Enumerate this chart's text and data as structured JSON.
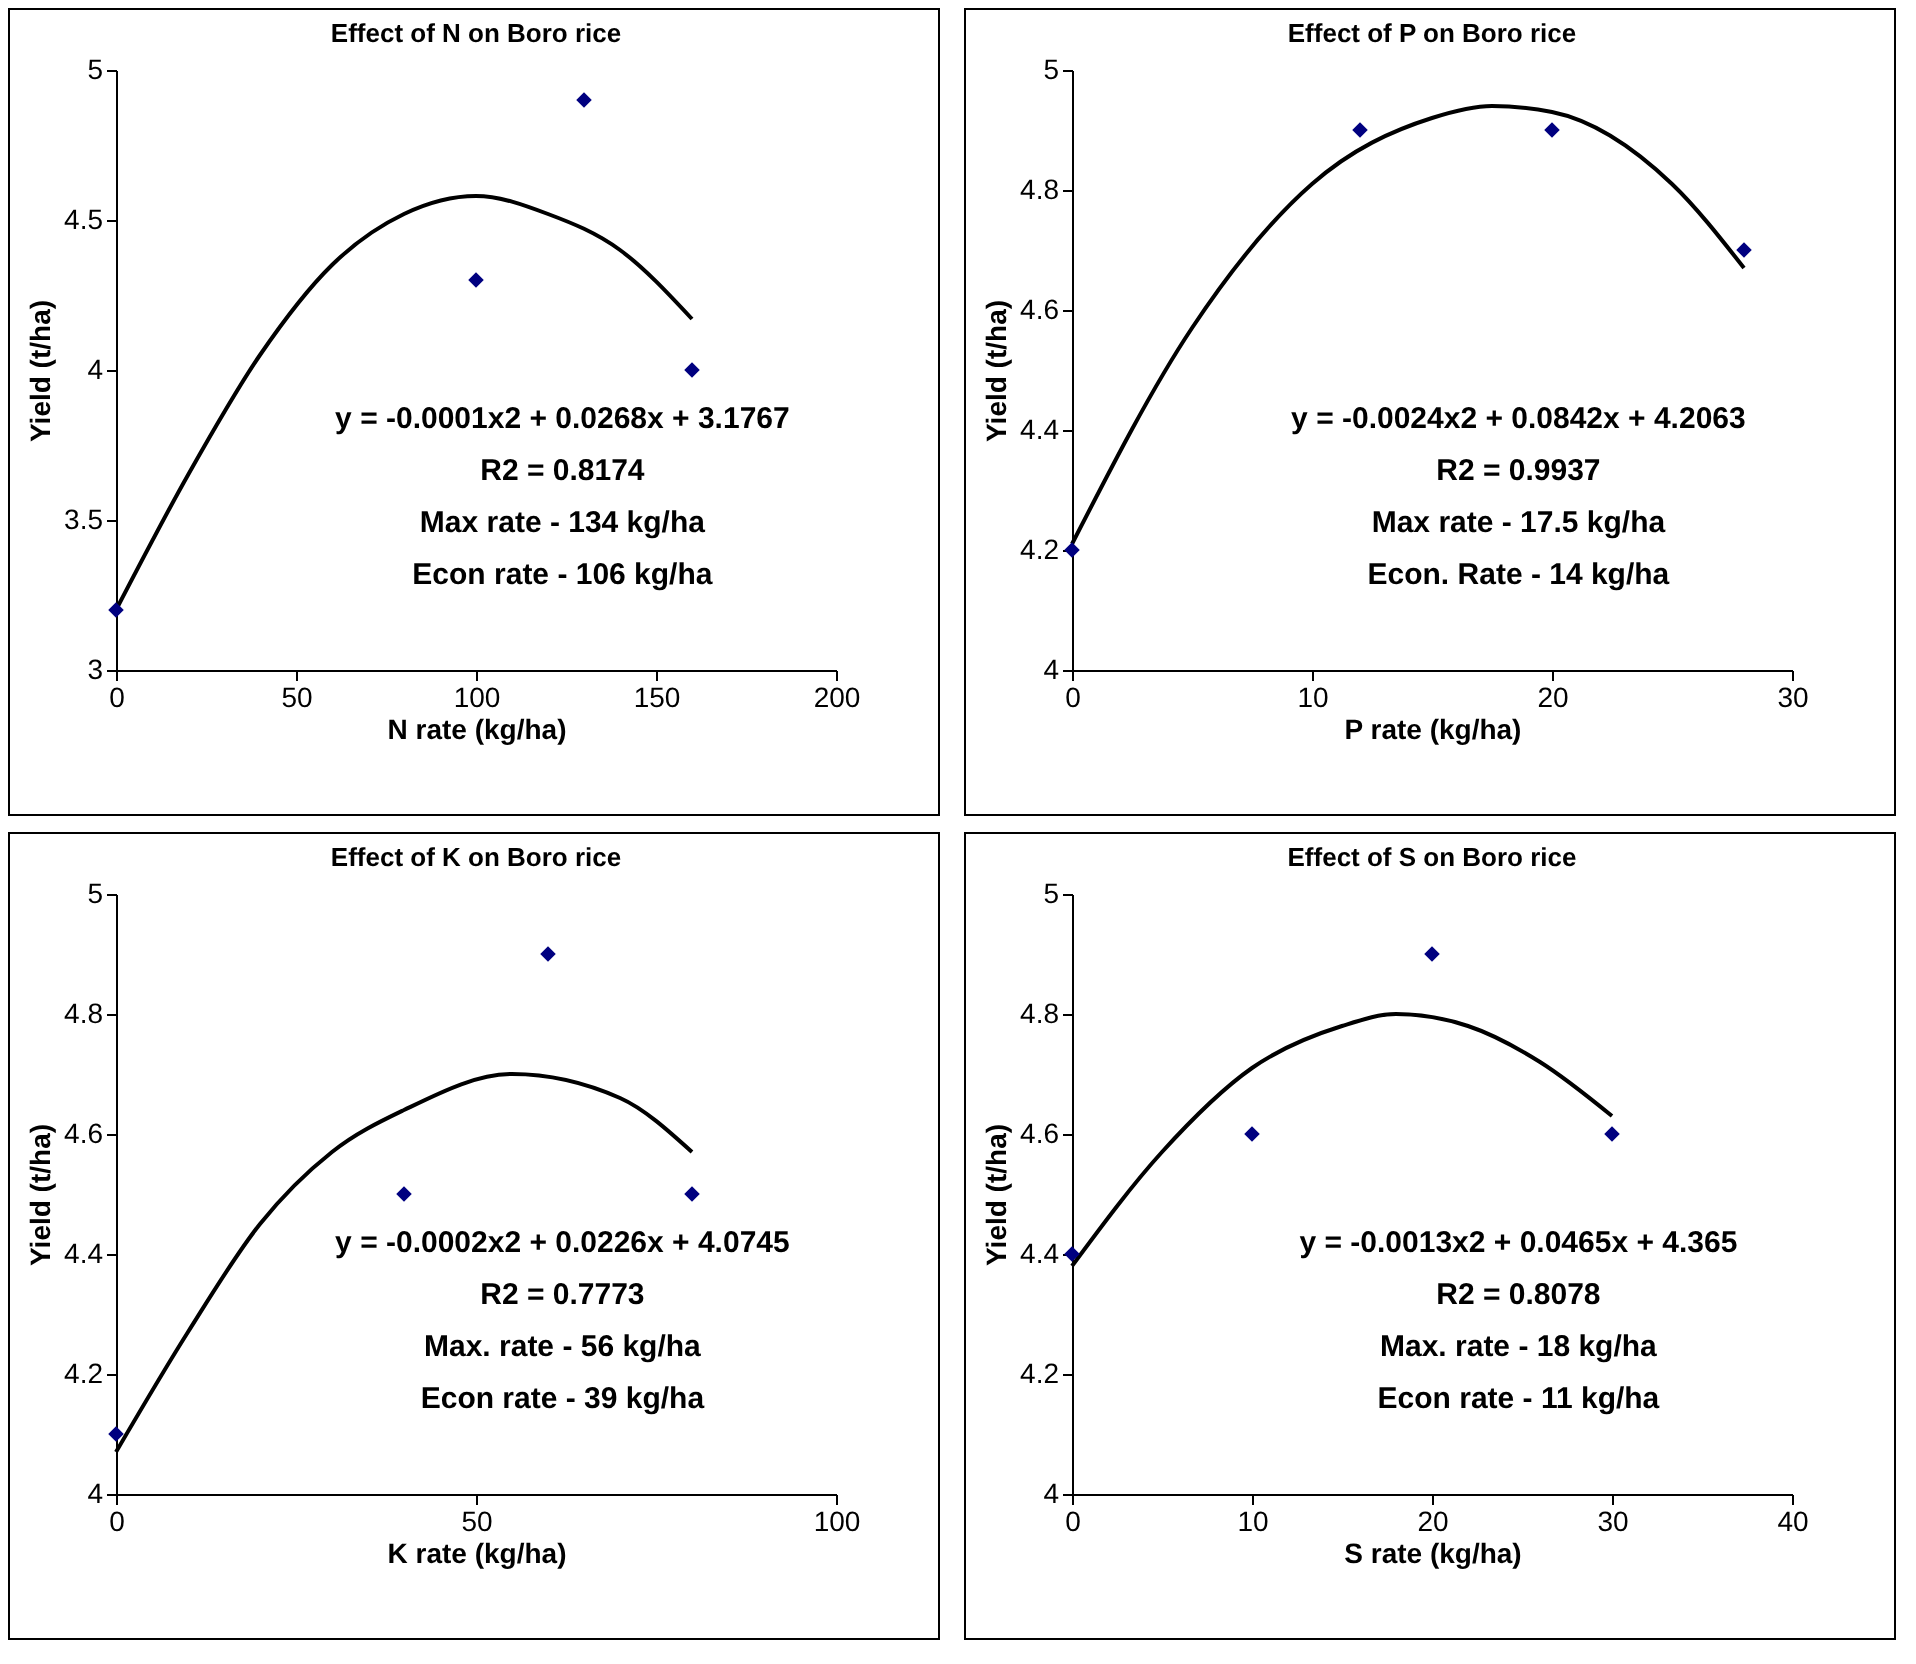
{
  "chart_data": [
    {
      "type": "scatter",
      "title": "Effect of N on Boro rice",
      "xlabel": "N rate (kg/ha)",
      "ylabel": "Yield (t/ha)",
      "xlim": [
        0,
        200
      ],
      "xticks": [
        0,
        50,
        100,
        150,
        200
      ],
      "ylim": [
        3,
        5
      ],
      "yticks": [
        3,
        3.5,
        4,
        4.5,
        5
      ],
      "series": [
        {
          "color": "#000080",
          "marker": "diamond",
          "x": [
            0,
            100,
            130,
            160
          ],
          "values": [
            3.2,
            4.3,
            4.9,
            4.0
          ]
        },
        {
          "type": "line",
          "color": "#000000",
          "x": [
            0,
            20,
            40,
            60,
            80,
            100,
            120,
            140,
            160
          ],
          "values": [
            3.2,
            3.65,
            4.05,
            4.35,
            4.52,
            4.58,
            4.52,
            4.4,
            4.17
          ]
        }
      ],
      "annotations": [
        "y = -0.0001x2 + 0.0268x + 3.1767",
        "R2 = 0.8174",
        "Max rate - 134 kg/ha",
        "Econ rate - 106 kg/ha"
      ]
    },
    {
      "type": "scatter",
      "title": "Effect of P on Boro rice",
      "xlabel": "P rate (kg/ha)",
      "ylabel": "Yield (t/ha)",
      "xlim": [
        0,
        30
      ],
      "xticks": [
        0,
        10,
        20,
        30
      ],
      "ylim": [
        4,
        5
      ],
      "yticks": [
        4,
        4.2,
        4.4,
        4.6,
        4.8,
        5
      ],
      "series": [
        {
          "color": "#000080",
          "marker": "diamond",
          "x": [
            0,
            12,
            20,
            28
          ],
          "values": [
            4.2,
            4.9,
            4.9,
            4.7
          ]
        },
        {
          "type": "line",
          "color": "#000000",
          "x": [
            0,
            5,
            10,
            15,
            17.5,
            20,
            25,
            28
          ],
          "values": [
            4.21,
            4.57,
            4.81,
            4.92,
            4.94,
            4.93,
            4.81,
            4.67
          ]
        }
      ],
      "annotations": [
        "y = -0.0024x2 + 0.0842x + 4.2063",
        "R2 = 0.9937",
        "Max rate - 17.5 kg/ha",
        "Econ. Rate - 14 kg/ha"
      ]
    },
    {
      "type": "scatter",
      "title": "Effect of K on Boro rice",
      "xlabel": "K rate (kg/ha)",
      "ylabel": "Yield (t/ha)",
      "xlim": [
        0,
        100
      ],
      "xticks": [
        0,
        50,
        100
      ],
      "ylim": [
        4,
        5
      ],
      "yticks": [
        4,
        4.2,
        4.4,
        4.6,
        4.8,
        5
      ],
      "series": [
        {
          "color": "#000080",
          "marker": "diamond",
          "x": [
            0,
            40,
            60,
            80
          ],
          "values": [
            4.1,
            4.5,
            4.9,
            4.5
          ]
        },
        {
          "type": "line",
          "color": "#000000",
          "x": [
            0,
            10,
            20,
            30,
            40,
            55,
            70,
            80
          ],
          "values": [
            4.07,
            4.27,
            4.45,
            4.57,
            4.64,
            4.7,
            4.66,
            4.57
          ]
        }
      ],
      "annotations": [
        "y = -0.0002x2 + 0.0226x + 4.0745",
        "R2 = 0.7773",
        "Max. rate - 56 kg/ha",
        "Econ rate - 39 kg/ha"
      ]
    },
    {
      "type": "scatter",
      "title": "Effect of S on Boro rice",
      "xlabel": "S rate (kg/ha)",
      "ylabel": "Yield (t/ha)",
      "xlim": [
        0,
        40
      ],
      "xticks": [
        0,
        10,
        20,
        30,
        40
      ],
      "ylim": [
        4,
        5
      ],
      "yticks": [
        4,
        4.2,
        4.4,
        4.6,
        4.8,
        5
      ],
      "series": [
        {
          "color": "#000080",
          "marker": "diamond",
          "x": [
            0,
            10,
            20,
            30
          ],
          "values": [
            4.4,
            4.6,
            4.9,
            4.6
          ]
        },
        {
          "type": "line",
          "color": "#000000",
          "x": [
            0,
            5,
            10,
            15,
            18,
            22,
            26,
            30
          ],
          "values": [
            4.38,
            4.57,
            4.71,
            4.78,
            4.8,
            4.78,
            4.72,
            4.63
          ]
        }
      ],
      "annotations": [
        "y = -0.0013x2 + 0.0465x + 4.365",
        "R2 = 0.8078",
        "Max. rate - 18 kg/ha",
        "Econ rate - 11 kg/ha"
      ]
    }
  ]
}
